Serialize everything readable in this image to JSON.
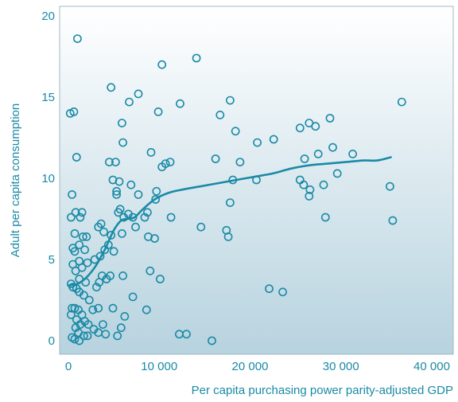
{
  "colors": {
    "marker": "#1a8aa6",
    "bg_top": "#ffffff",
    "bg_bottom": "#b7d3df",
    "text": "#1a8aa6"
  },
  "chart_data": {
    "type": "scatter",
    "title": "",
    "xlabel": "Per capita purchasing power parity-adjusted GDP",
    "ylabel": "Adult per capita consumption",
    "xlim": [
      0,
      40000
    ],
    "ylim": [
      0,
      20
    ],
    "xticks": [
      0,
      10000,
      20000,
      30000,
      40000
    ],
    "xtick_labels": [
      "0",
      "10 000",
      "20 000",
      "30 000",
      "40 000"
    ],
    "yticks": [
      0,
      5,
      10,
      15,
      20
    ],
    "ytick_labels": [
      "0",
      "5",
      "10",
      "15",
      "20"
    ],
    "grid": false,
    "legend": "none",
    "points": [
      {
        "x": 1000,
        "y": 18.6
      },
      {
        "x": 200,
        "y": 14.0
      },
      {
        "x": 600,
        "y": 14.1
      },
      {
        "x": 900,
        "y": 11.3
      },
      {
        "x": 400,
        "y": 9.0
      },
      {
        "x": 300,
        "y": 7.6
      },
      {
        "x": 800,
        "y": 7.9
      },
      {
        "x": 1300,
        "y": 7.6
      },
      {
        "x": 1500,
        "y": 7.9
      },
      {
        "x": 700,
        "y": 6.6
      },
      {
        "x": 1600,
        "y": 6.4
      },
      {
        "x": 2000,
        "y": 6.4
      },
      {
        "x": 1200,
        "y": 5.9
      },
      {
        "x": 500,
        "y": 5.7
      },
      {
        "x": 700,
        "y": 5.5
      },
      {
        "x": 1800,
        "y": 5.6
      },
      {
        "x": 1200,
        "y": 4.9
      },
      {
        "x": 2100,
        "y": 4.8
      },
      {
        "x": 1500,
        "y": 4.5
      },
      {
        "x": 500,
        "y": 4.7
      },
      {
        "x": 800,
        "y": 4.3
      },
      {
        "x": 1200,
        "y": 3.8
      },
      {
        "x": 1900,
        "y": 3.6
      },
      {
        "x": 300,
        "y": 3.5
      },
      {
        "x": 500,
        "y": 3.3
      },
      {
        "x": 900,
        "y": 3.2
      },
      {
        "x": 1200,
        "y": 3.0
      },
      {
        "x": 1700,
        "y": 2.8
      },
      {
        "x": 2300,
        "y": 2.5
      },
      {
        "x": 400,
        "y": 2.0
      },
      {
        "x": 700,
        "y": 2.0
      },
      {
        "x": 1100,
        "y": 1.9
      },
      {
        "x": 1500,
        "y": 1.6
      },
      {
        "x": 300,
        "y": 1.6
      },
      {
        "x": 900,
        "y": 1.3
      },
      {
        "x": 1300,
        "y": 1.0
      },
      {
        "x": 1800,
        "y": 1.2
      },
      {
        "x": 2200,
        "y": 1.0
      },
      {
        "x": 800,
        "y": 0.8
      },
      {
        "x": 1100,
        "y": 0.5
      },
      {
        "x": 400,
        "y": 0.2
      },
      {
        "x": 700,
        "y": 0.1
      },
      {
        "x": 1200,
        "y": 0.0
      },
      {
        "x": 1700,
        "y": 0.3
      },
      {
        "x": 2100,
        "y": 0.3
      },
      {
        "x": 2800,
        "y": 0.7
      },
      {
        "x": 3300,
        "y": 0.5
      },
      {
        "x": 3800,
        "y": 1.0
      },
      {
        "x": 4100,
        "y": 0.4
      },
      {
        "x": 2700,
        "y": 1.9
      },
      {
        "x": 3300,
        "y": 2.0
      },
      {
        "x": 3100,
        "y": 3.3
      },
      {
        "x": 3400,
        "y": 3.6
      },
      {
        "x": 3700,
        "y": 4.0
      },
      {
        "x": 4200,
        "y": 3.8
      },
      {
        "x": 4600,
        "y": 4.0
      },
      {
        "x": 2900,
        "y": 5.0
      },
      {
        "x": 3500,
        "y": 5.2
      },
      {
        "x": 4000,
        "y": 5.6
      },
      {
        "x": 4400,
        "y": 5.9
      },
      {
        "x": 5000,
        "y": 5.5
      },
      {
        "x": 4700,
        "y": 6.5
      },
      {
        "x": 3900,
        "y": 6.7
      },
      {
        "x": 3300,
        "y": 7.0
      },
      {
        "x": 3600,
        "y": 7.2
      },
      {
        "x": 4500,
        "y": 11.0
      },
      {
        "x": 4700,
        "y": 15.6
      },
      {
        "x": 5200,
        "y": 11.0
      },
      {
        "x": 4900,
        "y": 9.9
      },
      {
        "x": 5300,
        "y": 9.2
      },
      {
        "x": 5600,
        "y": 9.8
      },
      {
        "x": 5300,
        "y": 9.0
      },
      {
        "x": 5700,
        "y": 8.1
      },
      {
        "x": 5500,
        "y": 7.9
      },
      {
        "x": 6100,
        "y": 7.6
      },
      {
        "x": 6600,
        "y": 7.8
      },
      {
        "x": 7100,
        "y": 7.6
      },
      {
        "x": 5900,
        "y": 6.6
      },
      {
        "x": 6000,
        "y": 4.0
      },
      {
        "x": 6000,
        "y": 12.2
      },
      {
        "x": 5900,
        "y": 13.4
      },
      {
        "x": 6700,
        "y": 14.7
      },
      {
        "x": 7700,
        "y": 15.2
      },
      {
        "x": 6900,
        "y": 9.6
      },
      {
        "x": 7700,
        "y": 9.0
      },
      {
        "x": 7400,
        "y": 7.0
      },
      {
        "x": 7100,
        "y": 2.7
      },
      {
        "x": 4900,
        "y": 2.0
      },
      {
        "x": 5800,
        "y": 0.8
      },
      {
        "x": 6200,
        "y": 1.5
      },
      {
        "x": 5400,
        "y": 0.3
      },
      {
        "x": 8400,
        "y": 7.6
      },
      {
        "x": 8700,
        "y": 7.9
      },
      {
        "x": 8800,
        "y": 6.4
      },
      {
        "x": 9500,
        "y": 6.3
      },
      {
        "x": 8600,
        "y": 1.9
      },
      {
        "x": 9000,
        "y": 4.3
      },
      {
        "x": 10100,
        "y": 3.8
      },
      {
        "x": 9600,
        "y": 8.7
      },
      {
        "x": 9700,
        "y": 9.2
      },
      {
        "x": 9100,
        "y": 11.6
      },
      {
        "x": 9900,
        "y": 14.1
      },
      {
        "x": 10300,
        "y": 17.0
      },
      {
        "x": 10300,
        "y": 10.7
      },
      {
        "x": 10700,
        "y": 10.9
      },
      {
        "x": 11200,
        "y": 11.0
      },
      {
        "x": 11300,
        "y": 7.6
      },
      {
        "x": 12300,
        "y": 14.6
      },
      {
        "x": 12200,
        "y": 0.4
      },
      {
        "x": 13000,
        "y": 0.4
      },
      {
        "x": 14100,
        "y": 17.4
      },
      {
        "x": 14600,
        "y": 7.0
      },
      {
        "x": 15800,
        "y": 0.0
      },
      {
        "x": 16200,
        "y": 11.2
      },
      {
        "x": 16700,
        "y": 13.9
      },
      {
        "x": 17400,
        "y": 6.8
      },
      {
        "x": 17600,
        "y": 6.4
      },
      {
        "x": 17800,
        "y": 14.8
      },
      {
        "x": 17800,
        "y": 8.5
      },
      {
        "x": 18100,
        "y": 9.9
      },
      {
        "x": 18400,
        "y": 12.9
      },
      {
        "x": 18900,
        "y": 11.0
      },
      {
        "x": 20700,
        "y": 9.9
      },
      {
        "x": 20800,
        "y": 12.2
      },
      {
        "x": 22100,
        "y": 3.2
      },
      {
        "x": 22600,
        "y": 12.4
      },
      {
        "x": 23600,
        "y": 3.0
      },
      {
        "x": 25500,
        "y": 13.1
      },
      {
        "x": 25500,
        "y": 9.9
      },
      {
        "x": 25900,
        "y": 9.6
      },
      {
        "x": 26000,
        "y": 11.2
      },
      {
        "x": 26500,
        "y": 8.9
      },
      {
        "x": 26500,
        "y": 13.4
      },
      {
        "x": 26600,
        "y": 9.3
      },
      {
        "x": 27200,
        "y": 13.2
      },
      {
        "x": 27500,
        "y": 11.5
      },
      {
        "x": 28100,
        "y": 9.6
      },
      {
        "x": 28300,
        "y": 7.6
      },
      {
        "x": 28800,
        "y": 13.7
      },
      {
        "x": 29100,
        "y": 11.9
      },
      {
        "x": 29600,
        "y": 10.3
      },
      {
        "x": 31300,
        "y": 11.5
      },
      {
        "x": 35400,
        "y": 9.5
      },
      {
        "x": 35700,
        "y": 7.4
      },
      {
        "x": 36700,
        "y": 14.7
      }
    ],
    "trend_line": {
      "x": [
        0,
        1000,
        2000,
        3000,
        4000,
        5000,
        5800,
        6500,
        7300,
        8200,
        9500,
        11000,
        12500,
        14500,
        16500,
        18500,
        20500,
        22500,
        24500,
        26500,
        28500,
        30500,
        32500,
        34000,
        35500
      ],
      "y": [
        3.4,
        3.5,
        3.9,
        4.6,
        5.6,
        6.8,
        7.4,
        7.5,
        7.6,
        8.1,
        8.7,
        9.1,
        9.3,
        9.5,
        9.7,
        9.9,
        10.1,
        10.3,
        10.6,
        10.8,
        10.9,
        11.0,
        11.1,
        11.1,
        11.3
      ]
    }
  }
}
